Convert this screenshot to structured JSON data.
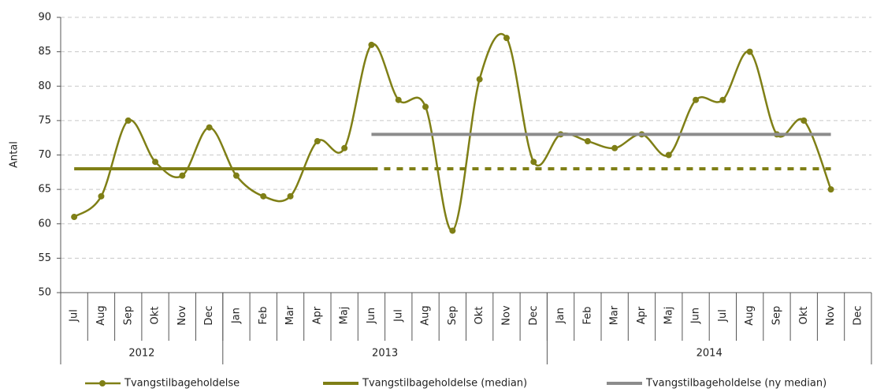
{
  "chart_data": {
    "type": "line",
    "y_label": "Antal",
    "categories": [
      "Jul",
      "Aug",
      "Sep",
      "Okt",
      "Nov",
      "Dec",
      "Jan",
      "Feb",
      "Mar",
      "Apr",
      "Maj",
      "Jun",
      "Jul",
      "Aug",
      "Sep",
      "Okt",
      "Nov",
      "Dec",
      "Jan",
      "Feb",
      "Mar",
      "Apr",
      "Maj",
      "Jun",
      "Jul",
      "Aug",
      "Sep",
      "Okt",
      "Nov",
      "Dec"
    ],
    "groups": [
      {
        "label": "2012",
        "span": 6
      },
      {
        "label": "2013",
        "span": 12
      },
      {
        "label": "2014",
        "span": 12
      }
    ],
    "series": [
      {
        "name": "Tvangstilbageholdelse",
        "color": "#7f7f16",
        "markers": true,
        "smooth": true,
        "values": [
          61,
          64,
          75,
          69,
          67,
          74,
          67,
          64,
          64,
          72,
          71,
          86,
          78,
          77,
          59,
          81,
          87,
          69,
          73,
          72,
          71,
          73,
          70,
          78,
          78,
          85,
          73,
          75,
          65,
          null
        ]
      },
      {
        "name": "Tvangstilbageholdelse (median)",
        "color": "#7f7f16",
        "values": [
          68,
          68,
          68,
          68,
          68,
          68,
          68,
          68,
          68,
          68,
          68,
          68,
          null,
          null,
          null,
          null,
          null,
          null,
          null,
          null,
          null,
          null,
          null,
          null,
          null,
          null,
          null,
          null,
          null,
          null
        ]
      },
      {
        "name": "Tvangstilbageholdelse (ny median)",
        "color": "#8c8c8c",
        "values": [
          null,
          null,
          null,
          null,
          null,
          null,
          null,
          null,
          null,
          null,
          null,
          73,
          73,
          73,
          73,
          73,
          73,
          73,
          73,
          73,
          73,
          73,
          73,
          73,
          73,
          73,
          73,
          73,
          73,
          null
        ]
      },
      {
        "color": "#7f7f16",
        "dashed": true,
        "values": [
          null,
          null,
          null,
          null,
          null,
          null,
          null,
          null,
          null,
          null,
          null,
          68,
          68,
          68,
          68,
          68,
          68,
          68,
          68,
          68,
          68,
          68,
          68,
          68,
          68,
          68,
          68,
          68,
          68,
          null
        ]
      }
    ],
    "ylim": [
      50,
      90
    ],
    "yticks": [
      50,
      55,
      60,
      65,
      70,
      75,
      80,
      85,
      90
    ],
    "grid": true
  }
}
